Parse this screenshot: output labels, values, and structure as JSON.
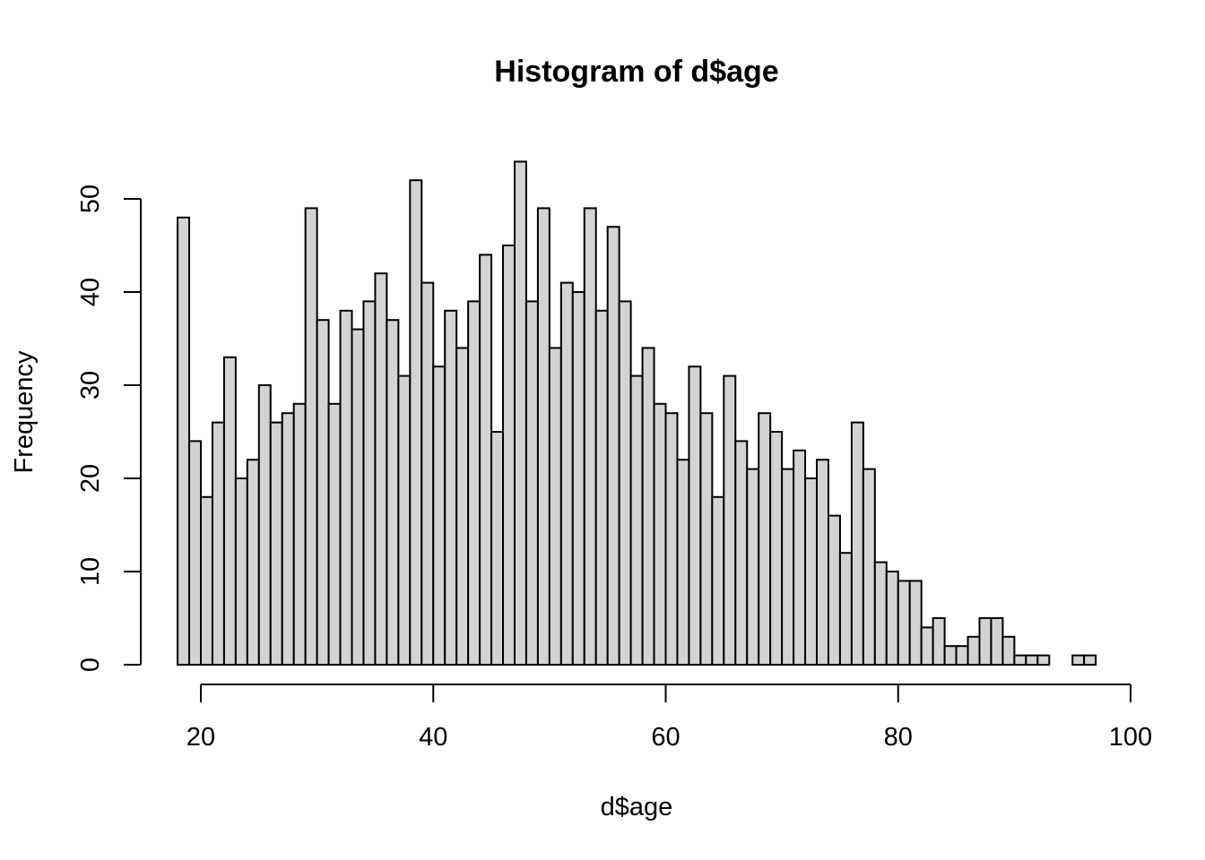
{
  "chart_data": {
    "type": "bar",
    "subtype": "histogram",
    "title": "Histogram of d$age",
    "xlabel": "d$age",
    "ylabel": "Frequency",
    "bar_color": "#d3d3d3",
    "edge_color": "#000000",
    "bin_width": 1,
    "x_start": 18,
    "xlim": [
      20,
      100
    ],
    "ylim": [
      0,
      50
    ],
    "x_ticks": [
      20,
      40,
      60,
      80,
      100
    ],
    "y_ticks": [
      0,
      10,
      20,
      30,
      40,
      50
    ],
    "values": [
      48,
      24,
      18,
      26,
      33,
      20,
      22,
      30,
      26,
      27,
      28,
      49,
      37,
      28,
      38,
      36,
      39,
      42,
      37,
      31,
      52,
      41,
      32,
      38,
      34,
      39,
      44,
      25,
      45,
      54,
      39,
      49,
      34,
      41,
      40,
      49,
      38,
      47,
      39,
      31,
      34,
      28,
      27,
      22,
      32,
      27,
      18,
      31,
      24,
      21,
      27,
      25,
      21,
      23,
      20,
      22,
      16,
      12,
      26,
      21,
      11,
      10,
      9,
      9,
      4,
      5,
      2,
      2,
      3,
      5,
      5,
      3,
      1,
      1,
      1,
      0,
      0,
      1,
      1
    ],
    "grid": false
  }
}
